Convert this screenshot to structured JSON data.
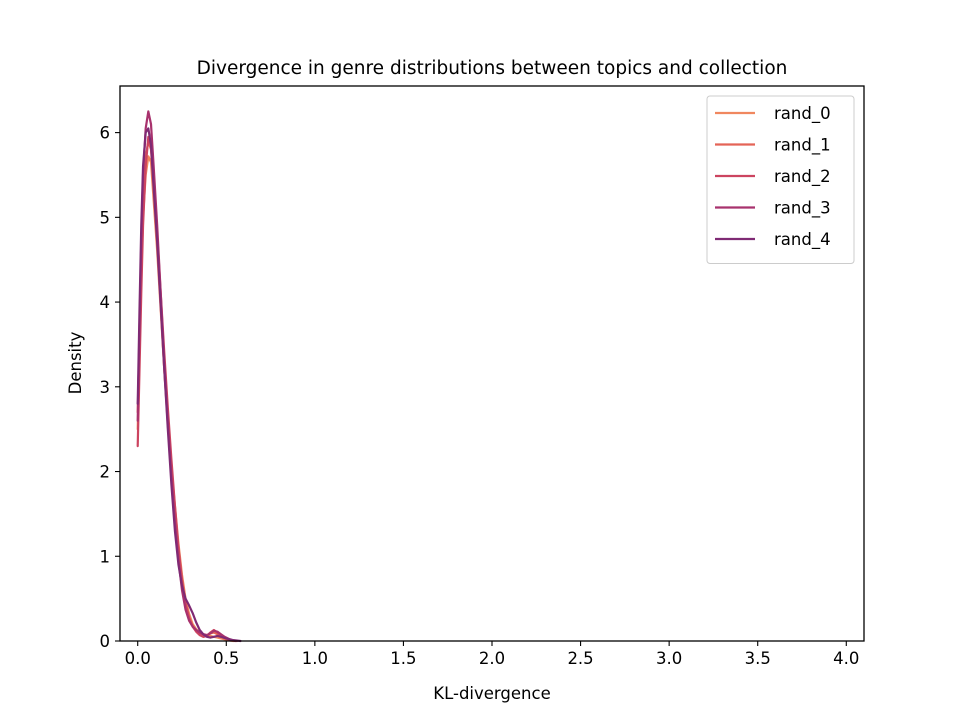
{
  "chart_data": {
    "type": "line",
    "title": "Divergence in genre distributions between topics and collection",
    "xlabel": "KL-divergence",
    "ylabel": "Density",
    "xlim": [
      -0.1,
      4.1
    ],
    "ylim": [
      0,
      6.55
    ],
    "xticks": [
      0.0,
      0.5,
      1.0,
      1.5,
      2.0,
      2.5,
      3.0,
      3.5,
      4.0
    ],
    "xtick_labels": [
      "0.0",
      "0.5",
      "1.0",
      "1.5",
      "2.0",
      "2.5",
      "3.0",
      "3.5",
      "4.0"
    ],
    "yticks": [
      0,
      1,
      2,
      3,
      4,
      5,
      6
    ],
    "ytick_labels": [
      "0",
      "1",
      "2",
      "3",
      "4",
      "5",
      "6"
    ],
    "grid": false,
    "legend_position": "top-right",
    "series": [
      {
        "name": "rand_0",
        "color": "#f0875f",
        "points": [
          [
            0.0,
            2.5
          ],
          [
            0.01,
            3.4
          ],
          [
            0.02,
            4.3
          ],
          [
            0.03,
            5.0
          ],
          [
            0.045,
            5.5
          ],
          [
            0.06,
            5.72
          ],
          [
            0.075,
            5.65
          ],
          [
            0.09,
            5.2
          ],
          [
            0.11,
            4.6
          ],
          [
            0.13,
            3.9
          ],
          [
            0.15,
            3.2
          ],
          [
            0.17,
            2.6
          ],
          [
            0.19,
            2.05
          ],
          [
            0.21,
            1.6
          ],
          [
            0.23,
            1.15
          ],
          [
            0.25,
            0.78
          ],
          [
            0.27,
            0.5
          ],
          [
            0.29,
            0.32
          ],
          [
            0.31,
            0.2
          ],
          [
            0.33,
            0.14
          ],
          [
            0.35,
            0.1
          ],
          [
            0.37,
            0.08
          ],
          [
            0.39,
            0.07
          ],
          [
            0.41,
            0.06
          ],
          [
            0.43,
            0.05
          ],
          [
            0.45,
            0.04
          ],
          [
            0.47,
            0.03
          ],
          [
            0.5,
            0.015
          ],
          [
            0.52,
            0.005
          ],
          [
            0.54,
            0.0
          ]
        ]
      },
      {
        "name": "rand_1",
        "color": "#e46457",
        "points": [
          [
            0.0,
            2.7
          ],
          [
            0.01,
            3.6
          ],
          [
            0.02,
            4.5
          ],
          [
            0.03,
            5.2
          ],
          [
            0.045,
            5.7
          ],
          [
            0.06,
            5.9
          ],
          [
            0.075,
            5.8
          ],
          [
            0.09,
            5.35
          ],
          [
            0.11,
            4.7
          ],
          [
            0.13,
            3.95
          ],
          [
            0.15,
            3.2
          ],
          [
            0.17,
            2.55
          ],
          [
            0.19,
            2.0
          ],
          [
            0.21,
            1.5
          ],
          [
            0.23,
            1.05
          ],
          [
            0.25,
            0.7
          ],
          [
            0.27,
            0.45
          ],
          [
            0.29,
            0.28
          ],
          [
            0.31,
            0.18
          ],
          [
            0.33,
            0.12
          ],
          [
            0.35,
            0.08
          ],
          [
            0.37,
            0.05
          ],
          [
            0.39,
            0.06
          ],
          [
            0.41,
            0.09
          ],
          [
            0.43,
            0.1
          ],
          [
            0.45,
            0.08
          ],
          [
            0.47,
            0.05
          ],
          [
            0.49,
            0.03
          ],
          [
            0.52,
            0.01
          ],
          [
            0.55,
            0.0
          ]
        ]
      },
      {
        "name": "rand_2",
        "color": "#cc4460",
        "points": [
          [
            0.0,
            2.3
          ],
          [
            0.01,
            3.2
          ],
          [
            0.02,
            4.1
          ],
          [
            0.03,
            4.9
          ],
          [
            0.045,
            5.6
          ],
          [
            0.06,
            5.95
          ],
          [
            0.075,
            5.85
          ],
          [
            0.09,
            5.4
          ],
          [
            0.11,
            4.8
          ],
          [
            0.13,
            4.1
          ],
          [
            0.15,
            3.4
          ],
          [
            0.17,
            2.75
          ],
          [
            0.19,
            2.15
          ],
          [
            0.21,
            1.6
          ],
          [
            0.23,
            1.1
          ],
          [
            0.25,
            0.72
          ],
          [
            0.27,
            0.44
          ],
          [
            0.29,
            0.27
          ],
          [
            0.31,
            0.17
          ],
          [
            0.33,
            0.11
          ],
          [
            0.35,
            0.07
          ],
          [
            0.37,
            0.05
          ],
          [
            0.39,
            0.06
          ],
          [
            0.41,
            0.1
          ],
          [
            0.43,
            0.13
          ],
          [
            0.45,
            0.1
          ],
          [
            0.47,
            0.06
          ],
          [
            0.5,
            0.03
          ],
          [
            0.53,
            0.01
          ],
          [
            0.56,
            0.0
          ]
        ]
      },
      {
        "name": "rand_3",
        "color": "#a8326d",
        "points": [
          [
            0.0,
            2.6
          ],
          [
            0.01,
            3.7
          ],
          [
            0.02,
            4.7
          ],
          [
            0.03,
            5.5
          ],
          [
            0.045,
            6.05
          ],
          [
            0.06,
            6.25
          ],
          [
            0.075,
            6.1
          ],
          [
            0.09,
            5.6
          ],
          [
            0.11,
            4.9
          ],
          [
            0.13,
            4.1
          ],
          [
            0.15,
            3.3
          ],
          [
            0.17,
            2.6
          ],
          [
            0.19,
            1.95
          ],
          [
            0.21,
            1.4
          ],
          [
            0.23,
            0.95
          ],
          [
            0.25,
            0.6
          ],
          [
            0.27,
            0.37
          ],
          [
            0.29,
            0.24
          ],
          [
            0.31,
            0.17
          ],
          [
            0.33,
            0.13
          ],
          [
            0.35,
            0.1
          ],
          [
            0.37,
            0.08
          ],
          [
            0.39,
            0.07
          ],
          [
            0.41,
            0.09
          ],
          [
            0.43,
            0.12
          ],
          [
            0.45,
            0.11
          ],
          [
            0.47,
            0.08
          ],
          [
            0.49,
            0.05
          ],
          [
            0.52,
            0.02
          ],
          [
            0.55,
            0.0
          ]
        ]
      },
      {
        "name": "rand_4",
        "color": "#7f2a74",
        "points": [
          [
            0.0,
            2.8
          ],
          [
            0.01,
            3.9
          ],
          [
            0.02,
            4.9
          ],
          [
            0.03,
            5.6
          ],
          [
            0.045,
            6.0
          ],
          [
            0.06,
            6.05
          ],
          [
            0.075,
            5.85
          ],
          [
            0.09,
            5.35
          ],
          [
            0.11,
            4.7
          ],
          [
            0.13,
            3.95
          ],
          [
            0.15,
            3.2
          ],
          [
            0.17,
            2.5
          ],
          [
            0.19,
            1.85
          ],
          [
            0.21,
            1.3
          ],
          [
            0.23,
            0.9
          ],
          [
            0.25,
            0.65
          ],
          [
            0.27,
            0.5
          ],
          [
            0.29,
            0.42
          ],
          [
            0.31,
            0.33
          ],
          [
            0.33,
            0.22
          ],
          [
            0.35,
            0.13
          ],
          [
            0.37,
            0.08
          ],
          [
            0.39,
            0.05
          ],
          [
            0.41,
            0.04
          ],
          [
            0.43,
            0.05
          ],
          [
            0.45,
            0.06
          ],
          [
            0.47,
            0.05
          ],
          [
            0.5,
            0.03
          ],
          [
            0.54,
            0.01
          ],
          [
            0.58,
            0.0
          ]
        ]
      }
    ]
  }
}
